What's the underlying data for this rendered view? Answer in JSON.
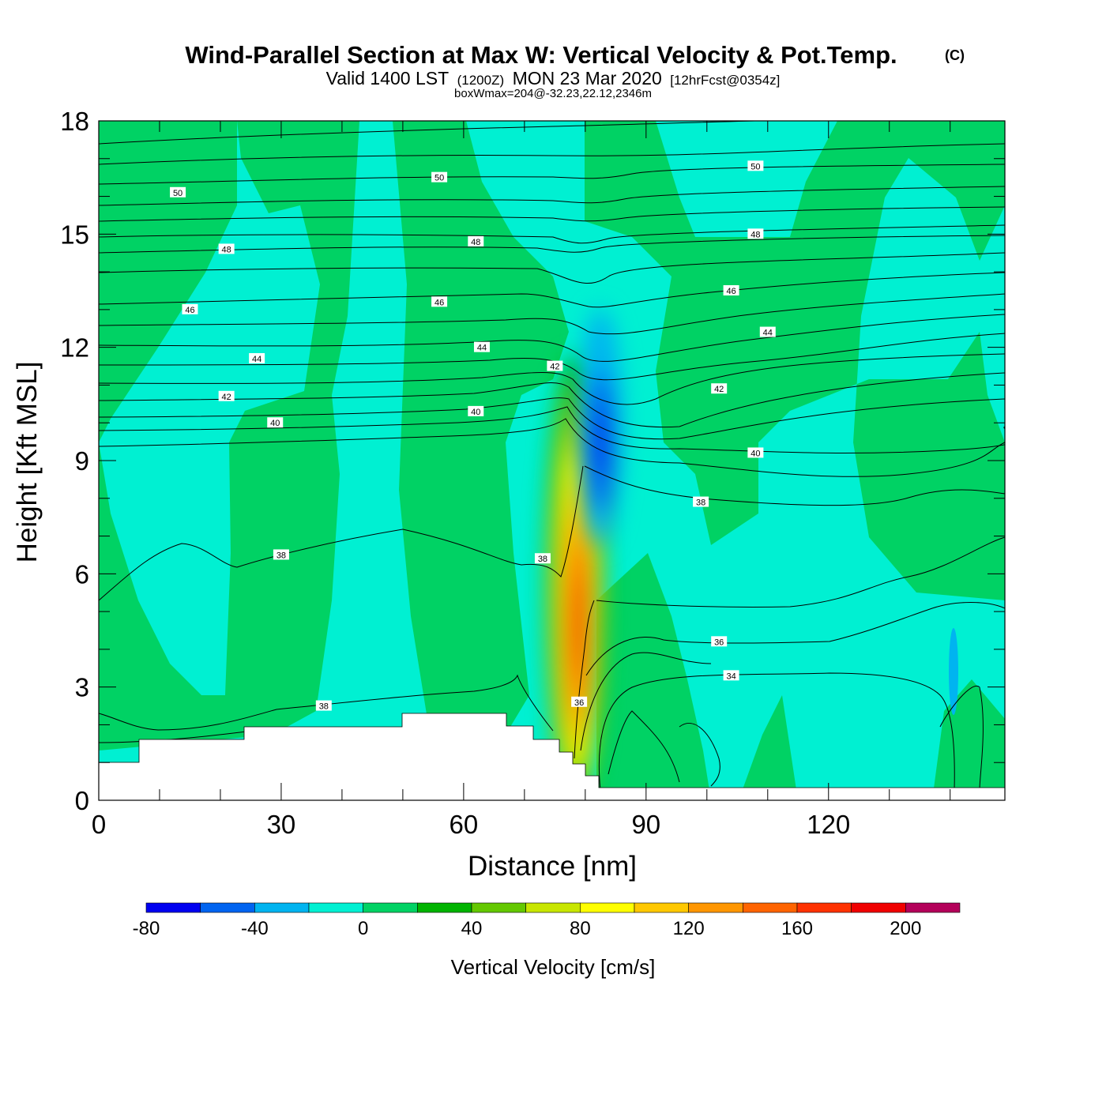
{
  "chart_data": {
    "type": "heatmap",
    "title": "Wind-Parallel Section at Max W: Vertical Velocity & Pot.Temp.",
    "copyright_mark": "(C)",
    "subtitle_valid": "Valid 1400 LST",
    "subtitle_zulu": "(1200Z)",
    "subtitle_date": "MON 23 Mar 2020",
    "subtitle_fcst": "[12hrFcst@0354z]",
    "box_info": "boxWmax=204@-32.23,22.12,2346m",
    "xlabel": "Distance [nm]",
    "ylabel": "Height [Kft MSL]",
    "xlim": [
      0,
      149
    ],
    "ylim": [
      0,
      18
    ],
    "x_ticks": [
      0,
      30,
      60,
      90,
      120
    ],
    "y_ticks": [
      0,
      3,
      6,
      9,
      12,
      15,
      18
    ],
    "colorbar": {
      "label": "Vertical Velocity [cm/s]",
      "bounds": [
        -80,
        -60,
        -40,
        -20,
        0,
        20,
        40,
        60,
        80,
        100,
        120,
        140,
        160,
        180,
        200,
        220
      ],
      "tick_labels": [
        "-80",
        "-40",
        "0",
        "40",
        "80",
        "120",
        "160",
        "200"
      ],
      "colors": [
        "#0000f0",
        "#0064f0",
        "#00b4f0",
        "#00f0d2",
        "#00d264",
        "#00b400",
        "#64c800",
        "#c8e600",
        "#ffff00",
        "#ffc800",
        "#ff9600",
        "#ff6400",
        "#ff3200",
        "#f00000",
        "#b4005a"
      ]
    },
    "background_field": "#00f0d2",
    "updraft": {
      "peak_value": 204,
      "x_nm": 78,
      "height_kft": 5.0,
      "top_kft": 11.0
    },
    "downdraft": {
      "min_value": -80,
      "x_nm": 82,
      "height_kft": 9.5
    },
    "theta_contours": [
      {
        "value": "50",
        "labels": [
          [
            13,
            16.1
          ],
          [
            56,
            16.5
          ],
          [
            108,
            16.8
          ]
        ]
      },
      {
        "value": "48",
        "labels": [
          [
            21,
            14.6
          ],
          [
            62,
            14.8
          ],
          [
            108,
            15.0
          ]
        ]
      },
      {
        "value": "46",
        "labels": [
          [
            15,
            13.0
          ],
          [
            56,
            13.2
          ],
          [
            104,
            13.5
          ]
        ]
      },
      {
        "value": "44",
        "labels": [
          [
            26,
            11.7
          ],
          [
            63,
            12.0
          ],
          [
            110,
            12.4
          ]
        ]
      },
      {
        "value": "42",
        "labels": [
          [
            21,
            10.7
          ],
          [
            75,
            11.5
          ],
          [
            102,
            10.9
          ]
        ]
      },
      {
        "value": "40",
        "labels": [
          [
            29,
            10.0
          ],
          [
            62,
            10.3
          ],
          [
            108,
            9.2
          ]
        ]
      },
      {
        "value": "38",
        "labels": [
          [
            30,
            6.5
          ],
          [
            73,
            6.4
          ],
          [
            99,
            7.9
          ],
          [
            37,
            2.5
          ]
        ]
      },
      {
        "value": "36",
        "labels": [
          [
            79,
            2.6
          ],
          [
            102,
            4.2
          ]
        ]
      },
      {
        "value": "34",
        "labels": [
          [
            104,
            3.3
          ]
        ]
      }
    ],
    "terrain_kft": [
      [
        0,
        1.0
      ],
      [
        7,
        1.6
      ],
      [
        24,
        1.9
      ],
      [
        50,
        2.3
      ],
      [
        67,
        1.9
      ],
      [
        71,
        1.6
      ],
      [
        75,
        1.0
      ],
      [
        77,
        0.7
      ],
      [
        79,
        0.4
      ],
      [
        149,
        0.4
      ]
    ]
  }
}
